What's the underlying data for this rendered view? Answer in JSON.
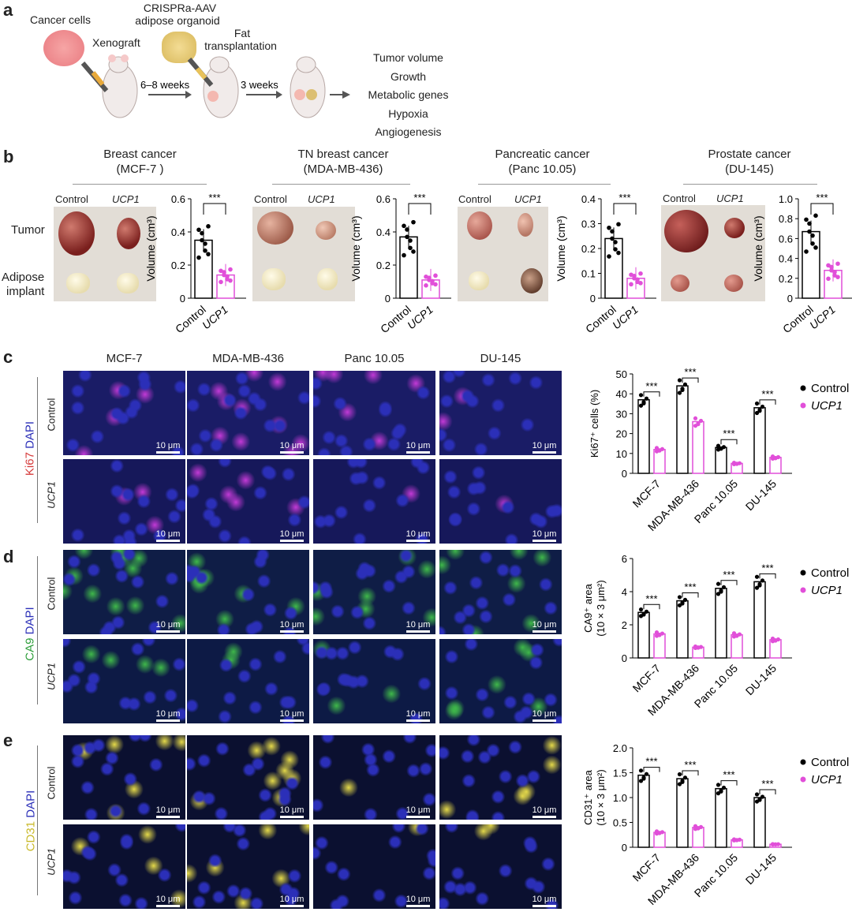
{
  "panel_labels": {
    "a": "a",
    "b": "b",
    "c": "c",
    "d": "d",
    "e": "e"
  },
  "schematic": {
    "cancer_cells": "Cancer cells",
    "xenograft": "Xenograft",
    "organoid_line1": "CRISPRa-AAV",
    "organoid_line2": "adipose organoid",
    "fat_line1": "Fat",
    "fat_line2": "transplantation",
    "weeks1": "6–8 weeks",
    "weeks2": "3 weeks",
    "outcomes": [
      "Tumor volume",
      "Growth",
      "Metabolic genes",
      "Hypoxia",
      "Angiogenesis"
    ]
  },
  "panel_b": {
    "row_tumor": "Tumor",
    "row_adipose_1": "Adipose",
    "row_adipose_2": "implant",
    "photo_control": "Control",
    "photo_ucp1": "UCP1",
    "groups": [
      {
        "title": "Breast cancer",
        "line": "(MCF-7 )"
      },
      {
        "title": "TN breast cancer",
        "line": "(MDA-MB-436)"
      },
      {
        "title": "Pancreatic cancer",
        "line": "(Panc 10.05)"
      },
      {
        "title": "Prostate cancer",
        "line": "(DU-145)"
      }
    ]
  },
  "micro": {
    "columns": [
      "MCF-7",
      "MDA-MB-436",
      "Panc 10.05",
      "DU-145"
    ],
    "row_control": "Control",
    "row_ucp1": "UCP1",
    "scale": "10 μm",
    "stain_c_1": "Ki67",
    "stain_c_2": "DAPI",
    "stain_d_1": "CA9",
    "stain_d_2": "DAPI",
    "stain_e_1": "CD31",
    "stain_e_2": "DAPI",
    "colors": {
      "dapi": "#2b2fb8",
      "ki67": "#c23ad6",
      "ca9": "#3fb84a",
      "cd31": "#e4d94a"
    }
  },
  "colors": {
    "control": "#000000",
    "ucp1": "#e14fd9"
  },
  "chart_data": [
    {
      "id": "b1",
      "type": "bar",
      "categories": [
        "Control",
        "UCP1"
      ],
      "values": [
        0.35,
        0.14
      ],
      "ylabel": "Volume (cm³)",
      "ylim": [
        0,
        0.6
      ],
      "ticks": [
        "0",
        "0.2",
        "0.4",
        "0.6"
      ],
      "significance": "***"
    },
    {
      "id": "b2",
      "type": "bar",
      "categories": [
        "Control",
        "UCP1"
      ],
      "values": [
        0.37,
        0.11
      ],
      "ylabel": "Volume (cm³)",
      "ylim": [
        0,
        0.6
      ],
      "ticks": [
        "0",
        "0.2",
        "0.4",
        "0.6"
      ],
      "significance": "***"
    },
    {
      "id": "b3",
      "type": "bar",
      "categories": [
        "Control",
        "UCP1"
      ],
      "values": [
        0.24,
        0.08
      ],
      "ylabel": "Volume (cm³)",
      "ylim": [
        0,
        0.4
      ],
      "ticks": [
        "0",
        "0.1",
        "0.2",
        "0.3",
        "0.4"
      ],
      "significance": "***"
    },
    {
      "id": "b4",
      "type": "bar",
      "categories": [
        "Control",
        "UCP1"
      ],
      "values": [
        0.67,
        0.28
      ],
      "ylabel": "Volume (cm³)",
      "ylim": [
        0,
        1.0
      ],
      "ticks": [
        "0",
        "0.2",
        "0.4",
        "0.6",
        "0.8",
        "1.0"
      ],
      "significance": "***"
    },
    {
      "id": "c",
      "type": "bar",
      "categories": [
        "MCF-7",
        "MDA-MB-436",
        "Panc 10.05",
        "DU-145"
      ],
      "series": [
        {
          "name": "Control",
          "values": [
            37,
            44,
            13,
            33
          ]
        },
        {
          "name": "UCP1",
          "values": [
            12,
            26,
            5,
            8
          ]
        }
      ],
      "ylabel": "Ki67⁺ cells (%)",
      "ylim": [
        0,
        50
      ],
      "ticks": [
        "0",
        "10",
        "20",
        "30",
        "40",
        "50"
      ],
      "significance": "***"
    },
    {
      "id": "d",
      "type": "bar",
      "categories": [
        "MCF-7",
        "MDA-MB-436",
        "Panc 10.05",
        "DU-145"
      ],
      "series": [
        {
          "name": "Control",
          "values": [
            2.75,
            3.45,
            4.2,
            4.6
          ]
        },
        {
          "name": "UCP1",
          "values": [
            1.45,
            0.65,
            1.4,
            1.1
          ]
        }
      ],
      "ylabel_1": "CA9⁺ area",
      "ylabel_2": "(10 × 3 μm²)",
      "ylim": [
        0,
        6
      ],
      "ticks": [
        "0",
        "2",
        "4",
        "6"
      ],
      "significance": "***"
    },
    {
      "id": "e",
      "type": "bar",
      "categories": [
        "MCF-7",
        "MDA-MB-436",
        "Panc 10.05",
        "DU-145"
      ],
      "series": [
        {
          "name": "Control",
          "values": [
            1.45,
            1.38,
            1.18,
            1.0
          ]
        },
        {
          "name": "UCP1",
          "values": [
            0.3,
            0.4,
            0.15,
            0.06
          ]
        }
      ],
      "ylabel_1": "CD31⁺ area",
      "ylabel_2": "(10 × 3 μm²)",
      "ylim": [
        0,
        2.0
      ],
      "ticks": [
        "0",
        "0.5",
        "1.0",
        "1.5",
        "2.0"
      ],
      "significance": "***"
    }
  ]
}
